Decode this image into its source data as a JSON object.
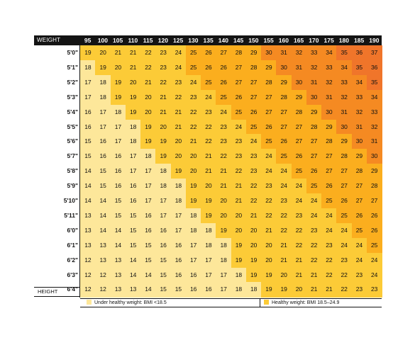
{
  "header": {
    "weight_label": "WEIGHT"
  },
  "footer": {
    "height_label": "HEIGHT"
  },
  "weights": [
    95,
    100,
    105,
    110,
    115,
    120,
    125,
    130,
    135,
    140,
    145,
    150,
    155,
    160,
    165,
    170,
    175,
    180,
    185,
    190
  ],
  "heights": [
    "5'0\"",
    "5'1\"",
    "5'2\"",
    "5'3\"",
    "5'4\"",
    "5'5\"",
    "5'6\"",
    "5'7\"",
    "5'8\"",
    "5'9\"",
    "5'10\"",
    "5'11\"",
    "6'0\"",
    "6'1\"",
    "6'2\"",
    "6'3\"",
    "6'4\""
  ],
  "colors": {
    "under": "#FDE79A",
    "healthy": "#FCCB37",
    "overweight": "#FBAE1E",
    "obese": "#F58A22",
    "extreme": "#F0752A"
  },
  "legend": [
    {
      "label": "Under healthy weight: BMI <18.5",
      "swatch_color": "#FDE79A"
    },
    {
      "label": "Healthy weight: BMI 18.5–24.9",
      "swatch_color": "#FCCB37"
    }
  ],
  "chart_data": {
    "type": "table",
    "row_labels": [
      "5'0\"",
      "5'1\"",
      "5'2\"",
      "5'3\"",
      "5'4\"",
      "5'5\"",
      "5'6\"",
      "5'7\"",
      "5'8\"",
      "5'9\"",
      "5'10\"",
      "5'11\"",
      "6'0\"",
      "6'1\"",
      "6'2\"",
      "6'3\"",
      "6'4\""
    ],
    "column_labels": [
      95,
      100,
      105,
      110,
      115,
      120,
      125,
      130,
      135,
      140,
      145,
      150,
      155,
      160,
      165,
      170,
      175,
      180,
      185,
      190
    ],
    "values": [
      [
        19,
        20,
        21,
        21,
        22,
        23,
        24,
        25,
        26,
        27,
        28,
        29,
        30,
        31,
        32,
        33,
        34,
        35,
        36,
        37
      ],
      [
        18,
        19,
        20,
        21,
        22,
        23,
        24,
        25,
        26,
        26,
        27,
        28,
        29,
        30,
        31,
        32,
        33,
        34,
        35,
        36
      ],
      [
        17,
        18,
        19,
        20,
        21,
        22,
        23,
        24,
        25,
        26,
        27,
        27,
        28,
        29,
        30,
        31,
        32,
        33,
        34,
        35
      ],
      [
        17,
        18,
        19,
        19,
        20,
        21,
        22,
        23,
        24,
        25,
        26,
        27,
        27,
        28,
        29,
        30,
        31,
        32,
        33,
        34
      ],
      [
        16,
        17,
        18,
        19,
        20,
        21,
        21,
        22,
        23,
        24,
        25,
        26,
        27,
        27,
        28,
        29,
        30,
        31,
        32,
        33
      ],
      [
        16,
        17,
        17,
        18,
        19,
        20,
        21,
        22,
        22,
        23,
        24,
        25,
        26,
        27,
        27,
        28,
        29,
        30,
        31,
        32
      ],
      [
        15,
        16,
        17,
        18,
        19,
        19,
        20,
        21,
        22,
        23,
        23,
        24,
        25,
        26,
        27,
        27,
        28,
        29,
        30,
        31
      ],
      [
        15,
        16,
        16,
        17,
        18,
        19,
        20,
        20,
        21,
        22,
        23,
        23,
        24,
        25,
        26,
        27,
        27,
        28,
        29,
        30
      ],
      [
        14,
        15,
        16,
        17,
        17,
        18,
        19,
        20,
        21,
        21,
        22,
        23,
        24,
        24,
        25,
        26,
        27,
        27,
        28,
        29
      ],
      [
        14,
        15,
        16,
        16,
        17,
        18,
        18,
        19,
        20,
        21,
        21,
        22,
        23,
        24,
        24,
        25,
        26,
        27,
        27,
        28
      ],
      [
        14,
        14,
        15,
        16,
        17,
        17,
        18,
        19,
        19,
        20,
        21,
        22,
        22,
        23,
        24,
        24,
        25,
        26,
        27,
        27
      ],
      [
        13,
        14,
        15,
        15,
        16,
        17,
        17,
        18,
        19,
        20,
        20,
        21,
        22,
        22,
        23,
        24,
        24,
        25,
        26,
        26
      ],
      [
        13,
        14,
        14,
        15,
        16,
        16,
        17,
        18,
        18,
        19,
        20,
        20,
        21,
        22,
        22,
        23,
        24,
        24,
        25,
        26
      ],
      [
        13,
        13,
        14,
        15,
        15,
        16,
        16,
        17,
        18,
        18,
        19,
        20,
        20,
        21,
        22,
        22,
        23,
        24,
        24,
        25
      ],
      [
        12,
        13,
        13,
        14,
        15,
        15,
        16,
        17,
        17,
        18,
        19,
        19,
        20,
        21,
        21,
        22,
        22,
        23,
        24,
        24
      ],
      [
        12,
        12,
        13,
        14,
        14,
        15,
        16,
        16,
        17,
        17,
        18,
        19,
        19,
        20,
        21,
        21,
        22,
        22,
        23,
        24
      ],
      [
        12,
        12,
        13,
        13,
        14,
        15,
        15,
        16,
        16,
        17,
        18,
        18,
        19,
        19,
        20,
        21,
        21,
        22,
        23,
        23
      ]
    ]
  }
}
